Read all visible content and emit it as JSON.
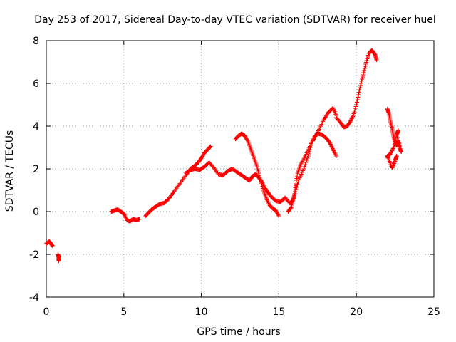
{
  "chart_data": {
    "type": "scatter",
    "title": "Day 253 of 2017, Sidereal Day-to-day VTEC variation (SDTVAR) for receiver huel",
    "xlabel": "GPS time / hours",
    "ylabel": "SDTVAR / TECUs",
    "xlim": [
      0,
      25
    ],
    "ylim": [
      -4,
      8
    ],
    "xticks": [
      "0",
      "5",
      "10",
      "15",
      "20",
      "25"
    ],
    "yticks": [
      "-4",
      "-2",
      "0",
      "2",
      "4",
      "6",
      "8"
    ],
    "grid": true,
    "marker": "+",
    "color": "#ff0000",
    "series": [
      {
        "name": "SDTVAR",
        "segments": [
          [
            [
              0.0,
              -1.5
            ],
            [
              0.1,
              -1.45
            ],
            [
              0.2,
              -1.4
            ],
            [
              0.3,
              -1.5
            ],
            [
              0.4,
              -1.6
            ]
          ],
          [
            [
              0.75,
              -2.0
            ],
            [
              0.8,
              -2.1
            ],
            [
              0.8,
              -2.3
            ]
          ],
          [
            [
              4.2,
              0.0
            ],
            [
              4.4,
              0.05
            ],
            [
              4.6,
              0.1
            ],
            [
              4.8,
              0.0
            ],
            [
              5.0,
              -0.1
            ],
            [
              5.2,
              -0.4
            ],
            [
              5.4,
              -0.45
            ],
            [
              5.6,
              -0.35
            ],
            [
              5.8,
              -0.4
            ],
            [
              6.0,
              -0.35
            ]
          ],
          [
            [
              6.4,
              -0.2
            ],
            [
              6.6,
              -0.05
            ],
            [
              6.8,
              0.1
            ],
            [
              7.0,
              0.2
            ],
            [
              7.3,
              0.35
            ],
            [
              7.6,
              0.4
            ],
            [
              7.9,
              0.6
            ],
            [
              8.2,
              0.9
            ],
            [
              8.6,
              1.3
            ],
            [
              9.0,
              1.7
            ],
            [
              9.3,
              2.0
            ],
            [
              9.5,
              2.1
            ],
            [
              9.8,
              2.3
            ],
            [
              10.0,
              2.5
            ],
            [
              10.2,
              2.75
            ],
            [
              10.4,
              2.9
            ],
            [
              10.6,
              3.05
            ]
          ],
          [
            [
              9.0,
              1.8
            ],
            [
              9.3,
              1.95
            ],
            [
              9.6,
              2.0
            ],
            [
              9.9,
              1.95
            ],
            [
              10.2,
              2.1
            ],
            [
              10.5,
              2.3
            ],
            [
              10.8,
              2.05
            ],
            [
              11.1,
              1.75
            ],
            [
              11.4,
              1.7
            ],
            [
              11.7,
              1.9
            ],
            [
              12.0,
              2.0
            ],
            [
              12.3,
              1.85
            ],
            [
              12.6,
              1.7
            ],
            [
              12.9,
              1.55
            ],
            [
              13.1,
              1.45
            ],
            [
              13.3,
              1.65
            ],
            [
              13.5,
              1.75
            ],
            [
              13.7,
              1.6
            ],
            [
              13.9,
              1.4
            ],
            [
              14.1,
              1.1
            ],
            [
              14.3,
              0.9
            ],
            [
              14.5,
              0.7
            ],
            [
              14.8,
              0.5
            ],
            [
              15.1,
              0.45
            ],
            [
              15.4,
              0.65
            ],
            [
              15.7,
              0.4
            ],
            [
              15.9,
              0.5
            ],
            [
              16.0,
              0.75
            ],
            [
              16.1,
              1.3
            ],
            [
              16.2,
              1.8
            ],
            [
              16.4,
              2.2
            ],
            [
              16.7,
              2.6
            ],
            [
              17.0,
              3.05
            ],
            [
              17.3,
              3.45
            ],
            [
              17.6,
              3.85
            ],
            [
              17.9,
              4.3
            ],
            [
              18.2,
              4.65
            ],
            [
              18.5,
              4.85
            ],
            [
              18.7,
              4.5
            ]
          ],
          [
            [
              12.2,
              3.4
            ],
            [
              12.4,
              3.55
            ],
            [
              12.6,
              3.65
            ],
            [
              12.8,
              3.55
            ],
            [
              13.0,
              3.3
            ],
            [
              13.2,
              2.9
            ],
            [
              13.4,
              2.5
            ],
            [
              13.6,
              2.1
            ],
            [
              13.8,
              1.5
            ],
            [
              14.0,
              1.0
            ],
            [
              14.2,
              0.6
            ],
            [
              14.4,
              0.3
            ],
            [
              14.6,
              0.15
            ],
            [
              14.8,
              0.05
            ],
            [
              15.0,
              -0.2
            ]
          ],
          [
            [
              15.6,
              0.0
            ],
            [
              15.8,
              0.2
            ],
            [
              16.0,
              0.8
            ],
            [
              16.3,
              1.5
            ],
            [
              16.6,
              2.0
            ],
            [
              16.9,
              2.6
            ],
            [
              17.1,
              3.2
            ],
            [
              17.3,
              3.5
            ],
            [
              17.5,
              3.65
            ],
            [
              17.8,
              3.6
            ],
            [
              18.1,
              3.4
            ],
            [
              18.3,
              3.2
            ],
            [
              18.5,
              2.9
            ],
            [
              18.7,
              2.6
            ]
          ],
          [
            [
              18.7,
              4.4
            ],
            [
              19.0,
              4.15
            ],
            [
              19.2,
              3.95
            ],
            [
              19.4,
              4.0
            ],
            [
              19.6,
              4.2
            ],
            [
              19.8,
              4.5
            ],
            [
              20.0,
              5.0
            ],
            [
              20.2,
              5.7
            ],
            [
              20.4,
              6.3
            ],
            [
              20.6,
              6.9
            ],
            [
              20.8,
              7.4
            ],
            [
              21.0,
              7.55
            ],
            [
              21.2,
              7.35
            ],
            [
              21.3,
              7.1
            ]
          ],
          [
            [
              22.0,
              4.8
            ],
            [
              22.1,
              4.6
            ],
            [
              22.2,
              4.2
            ],
            [
              22.3,
              3.9
            ],
            [
              22.4,
              3.5
            ],
            [
              22.5,
              3.2
            ],
            [
              22.6,
              3.1
            ],
            [
              22.7,
              3.3
            ],
            [
              22.8,
              2.9
            ],
            [
              22.9,
              2.8
            ],
            [
              22.6,
              3.6
            ],
            [
              22.7,
              3.8
            ],
            [
              22.4,
              3.0
            ],
            [
              22.2,
              2.7
            ],
            [
              22.0,
              2.6
            ],
            [
              22.05,
              2.5
            ],
            [
              22.3,
              2.05
            ],
            [
              22.35,
              2.1
            ],
            [
              22.5,
              2.4
            ],
            [
              22.6,
              2.6
            ]
          ]
        ]
      }
    ]
  }
}
